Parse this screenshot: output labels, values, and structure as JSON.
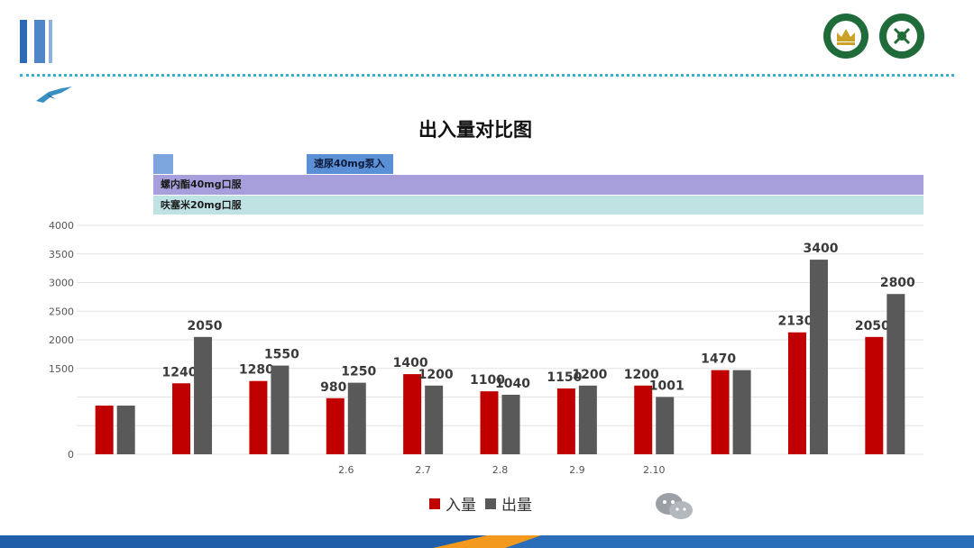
{
  "chart_data": {
    "type": "bar",
    "title": "出入量对比图",
    "categories": [
      "",
      "",
      "",
      "2.6",
      "2.7",
      "2.8",
      "2.9",
      "2.10",
      "",
      "",
      ""
    ],
    "series": [
      {
        "name": "入量",
        "color": "#c00000",
        "values": [
          850,
          1240,
          1280,
          980,
          1400,
          1100,
          1150,
          1200,
          1470,
          2130,
          2050
        ],
        "labels": [
          "",
          "1240",
          "1280",
          "980",
          "1400",
          "1100",
          "1150",
          "1200",
          "1470",
          "2130",
          "2050"
        ]
      },
      {
        "name": "出量",
        "color": "#595959",
        "values": [
          850,
          2050,
          1550,
          1250,
          1200,
          1040,
          1200,
          1001,
          1470,
          3400,
          2800
        ],
        "labels": [
          "",
          "2050",
          "1550",
          "1250",
          "1200",
          "1040",
          "1200",
          "1001",
          "",
          "3400",
          "2800"
        ]
      }
    ],
    "yticks": [
      0,
      1500,
      2000,
      2500,
      3000,
      3500,
      4000
    ],
    "ylim": [
      0,
      4000
    ],
    "legend_position": "bottom",
    "grid": true
  },
  "treatments": [
    {
      "label": "速尿40mg泵入"
    },
    {
      "label": "螺内酯40mg口服"
    },
    {
      "label": "呋塞米20mg口服"
    }
  ],
  "colors": {
    "accent": "#2d6cb5",
    "dotted": "#39b0d3",
    "logo": "#1f6b3a"
  },
  "icons": [
    "bird-icon",
    "hospital-logo-icon",
    "hospital-logo-icon",
    "wechat-icon"
  ]
}
